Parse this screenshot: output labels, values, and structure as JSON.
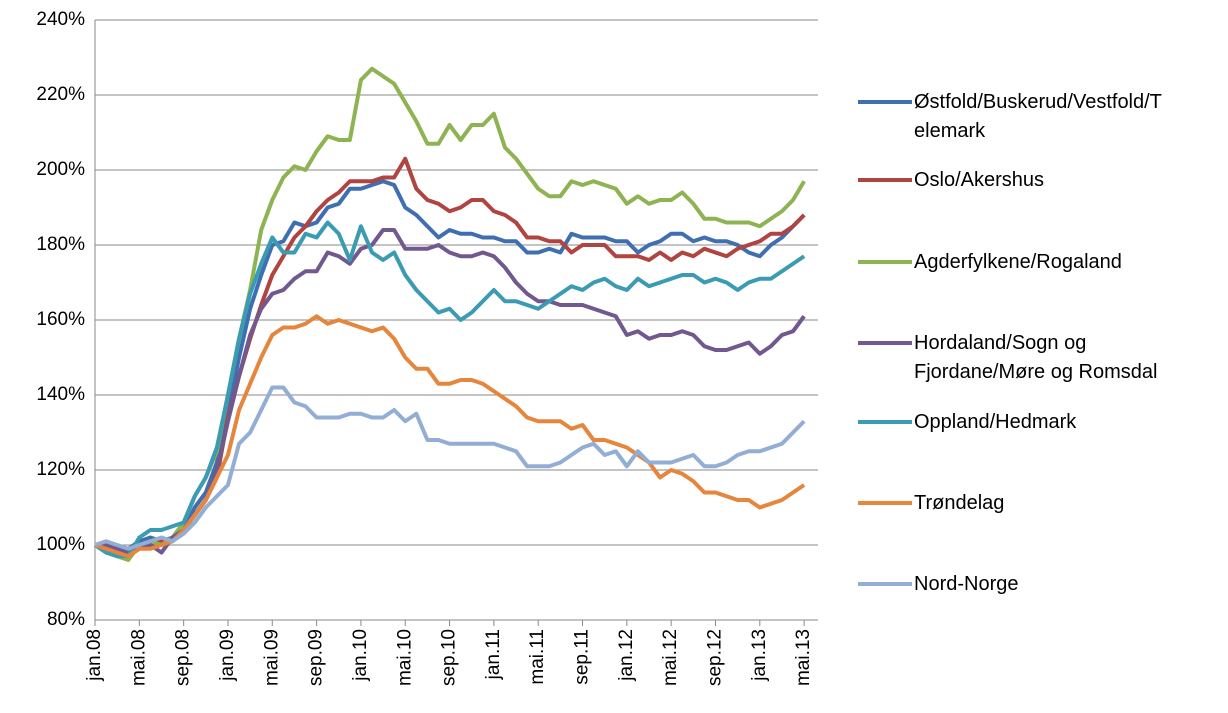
{
  "chart_data": {
    "type": "line",
    "categories": [
      "jan.08",
      null,
      null,
      null,
      "mai.08",
      null,
      null,
      null,
      "sep.08",
      null,
      null,
      null,
      "jan.09",
      null,
      null,
      null,
      "mai.09",
      null,
      null,
      null,
      "sep.09",
      null,
      null,
      null,
      "jan.10",
      null,
      null,
      null,
      "mai.10",
      null,
      null,
      null,
      "sep.10",
      null,
      null,
      null,
      "jan.11",
      null,
      null,
      null,
      "mai.11",
      null,
      null,
      null,
      "sep.11",
      null,
      null,
      null,
      "jan.12",
      null,
      null,
      null,
      "mai.12",
      null,
      null,
      null,
      "sep.12",
      null,
      null,
      null,
      "jan.13",
      null,
      null,
      null,
      "mai.13"
    ],
    "ylim": [
      80,
      240
    ],
    "yticks": [
      {
        "value": 80,
        "label": "80%"
      },
      {
        "value": 100,
        "label": "100%"
      },
      {
        "value": 120,
        "label": "120%"
      },
      {
        "value": 140,
        "label": "140%"
      },
      {
        "value": 160,
        "label": "160%"
      },
      {
        "value": 180,
        "label": "180%"
      },
      {
        "value": 200,
        "label": "200%"
      },
      {
        "value": 220,
        "label": "220%"
      },
      {
        "value": 240,
        "label": "240%"
      }
    ],
    "grid": true,
    "legend": "right",
    "series": [
      {
        "name": "Østfold/Buskerud/Vestfold/Telemark",
        "color": "#3f6fb0",
        "values": [
          100,
          100,
          99,
          99,
          101,
          102,
          101,
          102,
          104,
          110,
          114,
          122,
          135,
          150,
          163,
          172,
          180,
          181,
          186,
          185,
          186,
          190,
          191,
          195,
          195,
          196,
          197,
          196,
          190,
          188,
          185,
          182,
          184,
          183,
          183,
          182,
          182,
          181,
          181,
          178,
          178,
          179,
          178,
          183,
          182,
          182,
          182,
          181,
          181,
          178,
          180,
          181,
          183,
          183,
          181,
          182,
          181,
          181,
          180,
          178,
          177,
          180,
          182,
          185,
          188
        ]
      },
      {
        "name": "Oslo/Akershus",
        "color": "#b04440",
        "values": [
          100,
          100,
          98,
          97,
          99,
          100,
          101,
          101,
          104,
          108,
          112,
          118,
          134,
          145,
          155,
          164,
          172,
          177,
          182,
          185,
          189,
          192,
          194,
          197,
          197,
          197,
          198,
          198,
          203,
          195,
          192,
          191,
          189,
          190,
          192,
          192,
          189,
          188,
          186,
          182,
          182,
          181,
          181,
          178,
          180,
          180,
          180,
          177,
          177,
          177,
          176,
          178,
          176,
          178,
          177,
          179,
          178,
          177,
          179,
          180,
          181,
          183,
          183,
          185,
          188
        ]
      },
      {
        "name": "Agderfylkene/Rogaland",
        "color": "#8db352",
        "values": [
          100,
          98,
          97,
          96,
          100,
          101,
          100,
          102,
          106,
          113,
          118,
          125,
          140,
          155,
          168,
          184,
          192,
          198,
          201,
          200,
          205,
          209,
          208,
          208,
          224,
          227,
          225,
          223,
          218,
          213,
          207,
          207,
          212,
          208,
          212,
          212,
          215,
          206,
          203,
          199,
          195,
          193,
          193,
          197,
          196,
          197,
          196,
          195,
          191,
          193,
          191,
          192,
          192,
          194,
          191,
          187,
          187,
          186,
          186,
          186,
          185,
          187,
          189,
          192,
          197
        ]
      },
      {
        "name": "Hordaland/Sogn og Fjordane/Møre og Romsdal",
        "color": "#71588f",
        "values": [
          100,
          100,
          99,
          98,
          99,
          100,
          98,
          102,
          104,
          108,
          112,
          120,
          133,
          145,
          156,
          163,
          167,
          168,
          171,
          173,
          173,
          178,
          177,
          175,
          179,
          180,
          184,
          184,
          179,
          179,
          179,
          180,
          178,
          177,
          177,
          178,
          177,
          174,
          170,
          167,
          165,
          165,
          164,
          164,
          164,
          163,
          162,
          161,
          156,
          157,
          155,
          156,
          156,
          157,
          156,
          153,
          152,
          152,
          153,
          154,
          151,
          153,
          156,
          157,
          161
        ]
      },
      {
        "name": "Oppland/Hedmark",
        "color": "#3a9bb3",
        "values": [
          100,
          98,
          97,
          97,
          102,
          104,
          104,
          105,
          106,
          113,
          118,
          126,
          140,
          155,
          167,
          175,
          182,
          178,
          178,
          183,
          182,
          186,
          183,
          176,
          185,
          178,
          176,
          178,
          172,
          168,
          165,
          162,
          163,
          160,
          162,
          165,
          168,
          165,
          165,
          164,
          163,
          165,
          167,
          169,
          168,
          170,
          171,
          169,
          168,
          171,
          169,
          170,
          171,
          172,
          172,
          170,
          171,
          170,
          168,
          170,
          171,
          171,
          173,
          175,
          177
        ]
      },
      {
        "name": "Trøndelag",
        "color": "#e6853c",
        "values": [
          100,
          99,
          98,
          97,
          99,
          99,
          100,
          101,
          104,
          108,
          112,
          118,
          124,
          136,
          143,
          150,
          156,
          158,
          158,
          159,
          161,
          159,
          160,
          159,
          158,
          157,
          158,
          155,
          150,
          147,
          147,
          143,
          143,
          144,
          144,
          143,
          141,
          139,
          137,
          134,
          133,
          133,
          133,
          131,
          132,
          128,
          128,
          127,
          126,
          124,
          122,
          118,
          120,
          119,
          117,
          114,
          114,
          113,
          112,
          112,
          110,
          111,
          112,
          114,
          116
        ]
      },
      {
        "name": "Nord-Norge",
        "color": "#93aed4",
        "values": [
          100,
          101,
          100,
          99,
          100,
          101,
          102,
          101,
          103,
          106,
          110,
          113,
          116,
          127,
          130,
          136,
          142,
          142,
          138,
          137,
          134,
          134,
          134,
          135,
          135,
          134,
          134,
          136,
          133,
          135,
          128,
          128,
          127,
          127,
          127,
          127,
          127,
          126,
          125,
          121,
          121,
          121,
          122,
          124,
          126,
          127,
          124,
          125,
          121,
          125,
          122,
          122,
          122,
          123,
          124,
          121,
          121,
          122,
          124,
          125,
          125,
          126,
          127,
          130,
          133
        ]
      }
    ]
  }
}
